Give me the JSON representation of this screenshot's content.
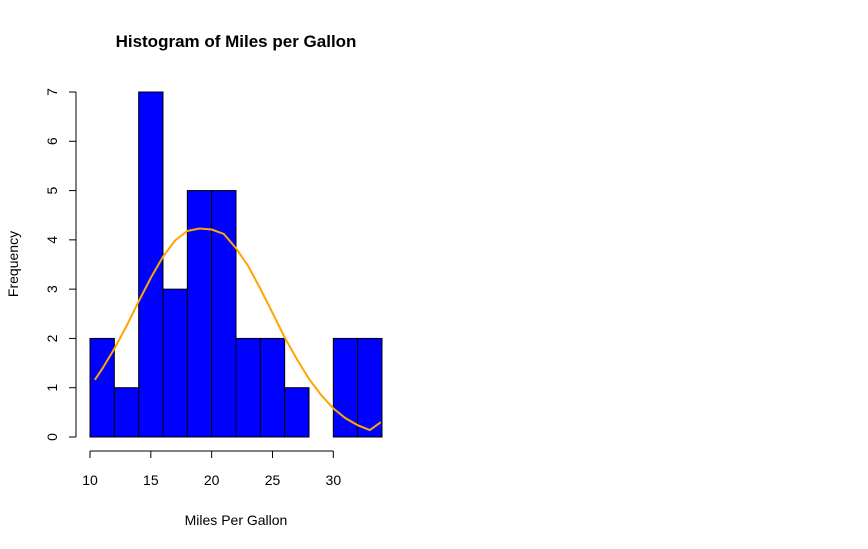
{
  "chart_data": {
    "type": "bar",
    "title": "Histogram of Miles per Gallon",
    "xlabel": "Miles Per Gallon",
    "ylabel": "Frequency",
    "bin_edges": [
      10,
      12,
      14,
      16,
      18,
      20,
      22,
      24,
      26,
      28,
      30,
      32,
      34
    ],
    "values": [
      2,
      1,
      7,
      3,
      5,
      5,
      2,
      2,
      1,
      0,
      2,
      2
    ],
    "x_ticks": [
      10,
      15,
      20,
      25,
      30
    ],
    "y_ticks": [
      0,
      1,
      2,
      3,
      4,
      5,
      6,
      7
    ],
    "xlim": [
      10,
      34
    ],
    "ylim": [
      0,
      7
    ],
    "bar_color": "#0000ff",
    "bar_border_color": "#000000",
    "curve": {
      "type": "normal-density-scaled",
      "color": "#ffa500",
      "x": [
        10.4,
        11,
        12,
        13,
        14,
        15,
        16,
        17,
        18,
        19,
        20,
        21,
        22,
        23,
        24,
        25,
        26,
        27,
        28,
        29,
        30,
        31,
        32,
        33,
        33.9
      ],
      "y": [
        1.16,
        1.38,
        1.79,
        2.25,
        2.75,
        3.23,
        3.66,
        3.99,
        4.18,
        4.23,
        4.21,
        4.12,
        3.83,
        3.47,
        3.01,
        2.52,
        2.02,
        1.58,
        1.18,
        0.85,
        0.58,
        0.38,
        0.24,
        0.14,
        0.3
      ]
    },
    "grid": false,
    "legend": "none"
  }
}
